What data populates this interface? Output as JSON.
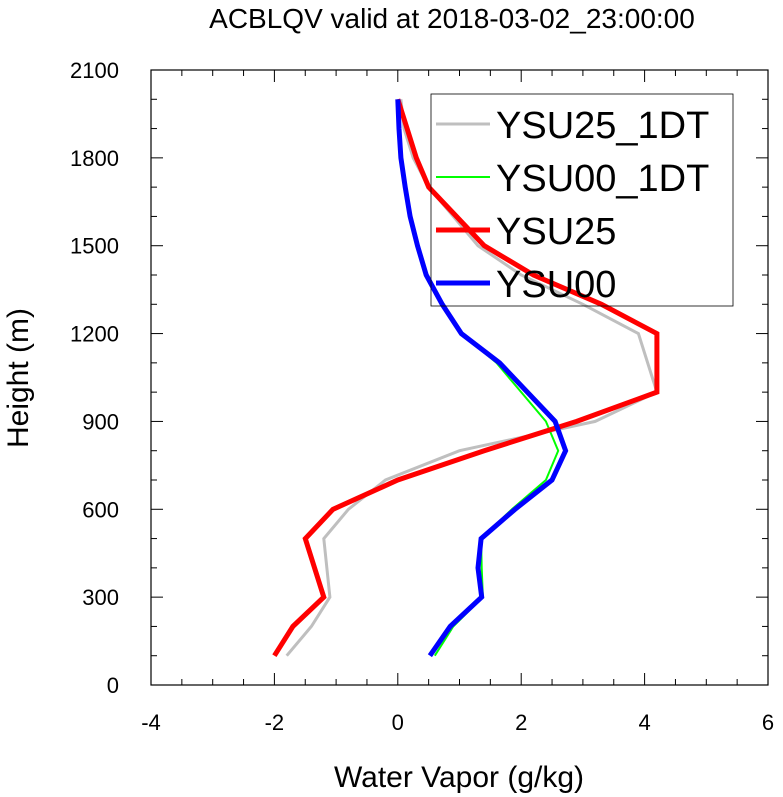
{
  "chart_data": {
    "type": "line",
    "title": "ACBLQV valid at 2018-03-02_23:00:00",
    "xlabel": "Water Vapor (g/kg)",
    "ylabel": "Height (m)",
    "xlim": [
      -4,
      6
    ],
    "ylim": [
      0,
      2100
    ],
    "xticks": [
      -4,
      -2,
      0,
      2,
      4,
      6
    ],
    "yticks": [
      0,
      300,
      600,
      900,
      1200,
      1500,
      1800,
      2100
    ],
    "grid": false,
    "legend_position": "top-right",
    "series": [
      {
        "name": "YSU25_1DT",
        "color": "#bfbfbf",
        "width": 3,
        "points": [
          [
            -1.8,
            100
          ],
          [
            -1.4,
            200
          ],
          [
            -1.1,
            300
          ],
          [
            -1.2,
            500
          ],
          [
            -0.8,
            600
          ],
          [
            -0.2,
            700
          ],
          [
            1.0,
            800
          ],
          [
            3.2,
            900
          ],
          [
            4.2,
            1000
          ],
          [
            3.9,
            1200
          ],
          [
            3.0,
            1300
          ],
          [
            2.0,
            1400
          ],
          [
            1.3,
            1500
          ],
          [
            0.9,
            1600
          ],
          [
            0.5,
            1700
          ],
          [
            0.25,
            1800
          ],
          [
            0.1,
            1900
          ],
          [
            0.05,
            2000
          ]
        ]
      },
      {
        "name": "YSU00_1DT",
        "color": "#00ff00",
        "width": 2,
        "points": [
          [
            0.6,
            100
          ],
          [
            0.9,
            200
          ],
          [
            1.38,
            300
          ],
          [
            1.36,
            400
          ],
          [
            1.35,
            500
          ],
          [
            1.85,
            600
          ],
          [
            2.4,
            700
          ],
          [
            2.6,
            800
          ],
          [
            2.4,
            900
          ],
          [
            1.6,
            1100
          ],
          [
            1.03,
            1200
          ],
          [
            0.72,
            1300
          ],
          [
            0.46,
            1400
          ],
          [
            0.32,
            1500
          ],
          [
            0.2,
            1600
          ],
          [
            0.12,
            1700
          ],
          [
            0.05,
            1800
          ],
          [
            0.02,
            1900
          ],
          [
            0.0,
            2000
          ]
        ]
      },
      {
        "name": "YSU25",
        "color": "#ff0000",
        "width": 5,
        "points": [
          [
            -2.0,
            100
          ],
          [
            -1.7,
            200
          ],
          [
            -1.2,
            300
          ],
          [
            -1.5,
            500
          ],
          [
            -1.05,
            600
          ],
          [
            0.0,
            700
          ],
          [
            1.4,
            800
          ],
          [
            2.9,
            900
          ],
          [
            4.2,
            1000
          ],
          [
            4.2,
            1200
          ],
          [
            3.3,
            1300
          ],
          [
            2.2,
            1400
          ],
          [
            1.4,
            1500
          ],
          [
            0.95,
            1600
          ],
          [
            0.5,
            1700
          ],
          [
            0.3,
            1800
          ],
          [
            0.15,
            1900
          ],
          [
            0.0,
            2000
          ]
        ]
      },
      {
        "name": "YSU00",
        "color": "#0000ff",
        "width": 5,
        "points": [
          [
            0.52,
            100
          ],
          [
            0.85,
            200
          ],
          [
            1.36,
            300
          ],
          [
            1.3,
            400
          ],
          [
            1.35,
            500
          ],
          [
            1.9,
            600
          ],
          [
            2.5,
            700
          ],
          [
            2.72,
            800
          ],
          [
            2.55,
            900
          ],
          [
            1.65,
            1100
          ],
          [
            1.03,
            1200
          ],
          [
            0.72,
            1300
          ],
          [
            0.46,
            1400
          ],
          [
            0.32,
            1500
          ],
          [
            0.2,
            1600
          ],
          [
            0.12,
            1700
          ],
          [
            0.05,
            1800
          ],
          [
            0.02,
            1900
          ],
          [
            0.0,
            2000
          ]
        ]
      }
    ]
  }
}
